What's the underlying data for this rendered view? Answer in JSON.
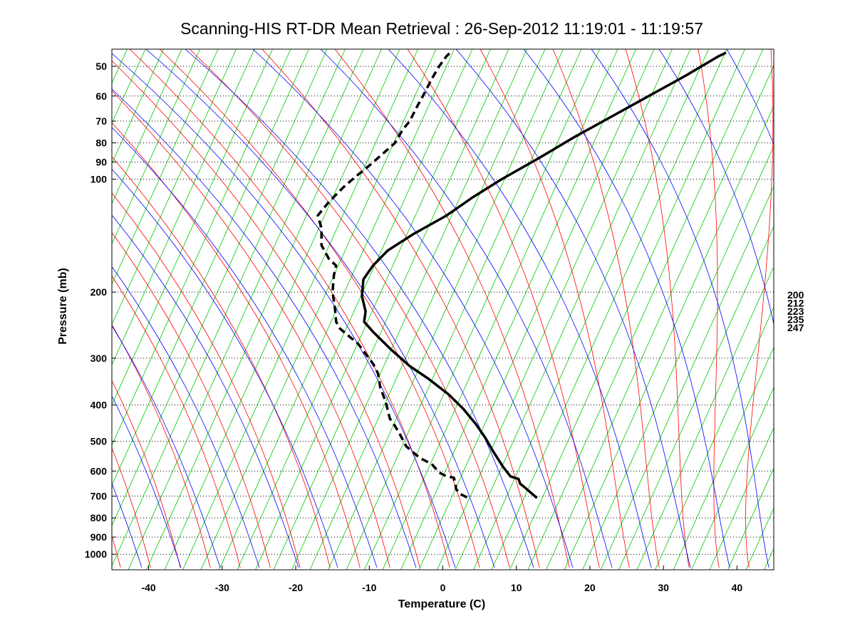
{
  "chart_data": {
    "type": "line",
    "title": "Scanning-HIS RT-DR Mean Retrieval : 26-Sep-2012 11:19:01 - 11:19:57",
    "xlabel": "Temperature (C)",
    "ylabel": "Pressure (mb)",
    "xlim": [
      -45,
      45
    ],
    "ylim": [
      1100,
      45
    ],
    "yscale": "log",
    "x_ticks": [
      -40,
      -30,
      -20,
      -10,
      0,
      10,
      20,
      30,
      40
    ],
    "x_tick_labels": [
      "-40",
      "-30",
      "-20",
      "-10",
      "0",
      "10",
      "20",
      "30",
      "40"
    ],
    "y_ticks": [
      50,
      60,
      70,
      80,
      90,
      100,
      200,
      300,
      400,
      500,
      600,
      700,
      800,
      900,
      1000
    ],
    "y_tick_labels": [
      "50",
      "60",
      "70",
      "80",
      "90",
      "100",
      "200",
      "300",
      "400",
      "500",
      "600",
      "700",
      "800",
      "900",
      "1000"
    ],
    "grid": "horizontal dotted lines at pressure ticks",
    "right_labels": [
      "200",
      "212",
      "223",
      "235",
      "247"
    ],
    "colors": {
      "dry_adiabats": "#ff0000",
      "moist_adiabats": "#0000ff",
      "mixing_ratio": "#00c800",
      "profiles": "#000000",
      "grid": "#000000"
    },
    "series": [
      {
        "name": "Temperature",
        "style": "solid",
        "points": [
          [
            12.8,
            708
          ],
          [
            11.2,
            665
          ],
          [
            10.5,
            648
          ],
          [
            10.3,
            630
          ],
          [
            9.2,
            620
          ],
          [
            8.2,
            585
          ],
          [
            6.8,
            530
          ],
          [
            5.8,
            490
          ],
          [
            4.5,
            450
          ],
          [
            2.8,
            410
          ],
          [
            0.8,
            375
          ],
          [
            -2.0,
            340
          ],
          [
            -4.5,
            315
          ],
          [
            -7.0,
            285
          ],
          [
            -9.5,
            255
          ],
          [
            -10.7,
            240
          ],
          [
            -10.5,
            225
          ],
          [
            -11.0,
            205
          ],
          [
            -10.8,
            185
          ],
          [
            -9.5,
            170
          ],
          [
            -7.5,
            155
          ],
          [
            -4.0,
            140
          ],
          [
            0.5,
            125
          ],
          [
            4.0,
            112
          ],
          [
            8.0,
            100
          ],
          [
            13.0,
            88
          ],
          [
            18.0,
            77
          ],
          [
            23.0,
            68
          ],
          [
            28.0,
            60
          ],
          [
            33.0,
            53
          ],
          [
            37.5,
            47
          ],
          [
            38.5,
            46
          ]
        ]
      },
      {
        "name": "Dewpoint",
        "style": "dashed",
        "points": [
          [
            3.3,
            705
          ],
          [
            2.3,
            690
          ],
          [
            1.8,
            670
          ],
          [
            1.7,
            645
          ],
          [
            1.5,
            625
          ],
          [
            0.5,
            620
          ],
          [
            -0.5,
            605
          ],
          [
            -1.5,
            575
          ],
          [
            -3.0,
            555
          ],
          [
            -3.8,
            540
          ],
          [
            -4.5,
            525
          ],
          [
            -5.0,
            515
          ],
          [
            -5.8,
            480
          ],
          [
            -6.5,
            455
          ],
          [
            -7.2,
            435
          ],
          [
            -7.8,
            390
          ],
          [
            -8.5,
            360
          ],
          [
            -8.8,
            330
          ],
          [
            -9.5,
            310
          ],
          [
            -11.5,
            275
          ],
          [
            -14.0,
            250
          ],
          [
            -14.5,
            240
          ],
          [
            -14.7,
            218
          ],
          [
            -15.0,
            200
          ],
          [
            -14.8,
            180
          ],
          [
            -14.5,
            170
          ],
          [
            -15.5,
            163
          ],
          [
            -16.5,
            150
          ],
          [
            -16.5,
            135
          ],
          [
            -17.0,
            125
          ],
          [
            -15.5,
            115
          ],
          [
            -13.5,
            105
          ],
          [
            -12.0,
            99
          ],
          [
            -10.0,
            92
          ],
          [
            -8.0,
            85
          ],
          [
            -6.5,
            80
          ],
          [
            -5.5,
            74
          ],
          [
            -4.5,
            70
          ],
          [
            -3.5,
            64
          ],
          [
            -2.5,
            59
          ],
          [
            -1.5,
            54
          ],
          [
            -0.5,
            50
          ],
          [
            0.5,
            47
          ],
          [
            1.0,
            46
          ]
        ]
      }
    ]
  }
}
